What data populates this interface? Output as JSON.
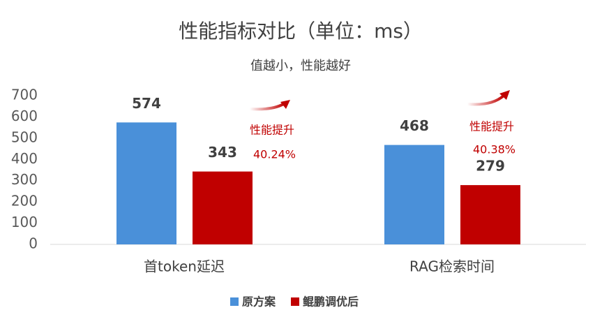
{
  "chart_data": {
    "type": "bar",
    "title": "性能指标对比（单位：ms）",
    "subtitle": "值越小，性能越好",
    "categories": [
      "首token延迟",
      "RAG检索时间"
    ],
    "series": [
      {
        "name": "原方案",
        "color": "#4a90d9",
        "values": [
          574,
          468
        ]
      },
      {
        "name": "鲲鹏调优后",
        "color": "#c00000",
        "values": [
          343,
          279
        ]
      }
    ],
    "ylim": [
      0,
      700
    ],
    "yticks": [
      0,
      100,
      200,
      300,
      400,
      500,
      600,
      700
    ],
    "grid": false,
    "legend": "bottom",
    "annotations": [
      {
        "label": "性能提升",
        "value": "40.24%"
      },
      {
        "label": "性能提升",
        "value": "40.38%"
      }
    ]
  }
}
